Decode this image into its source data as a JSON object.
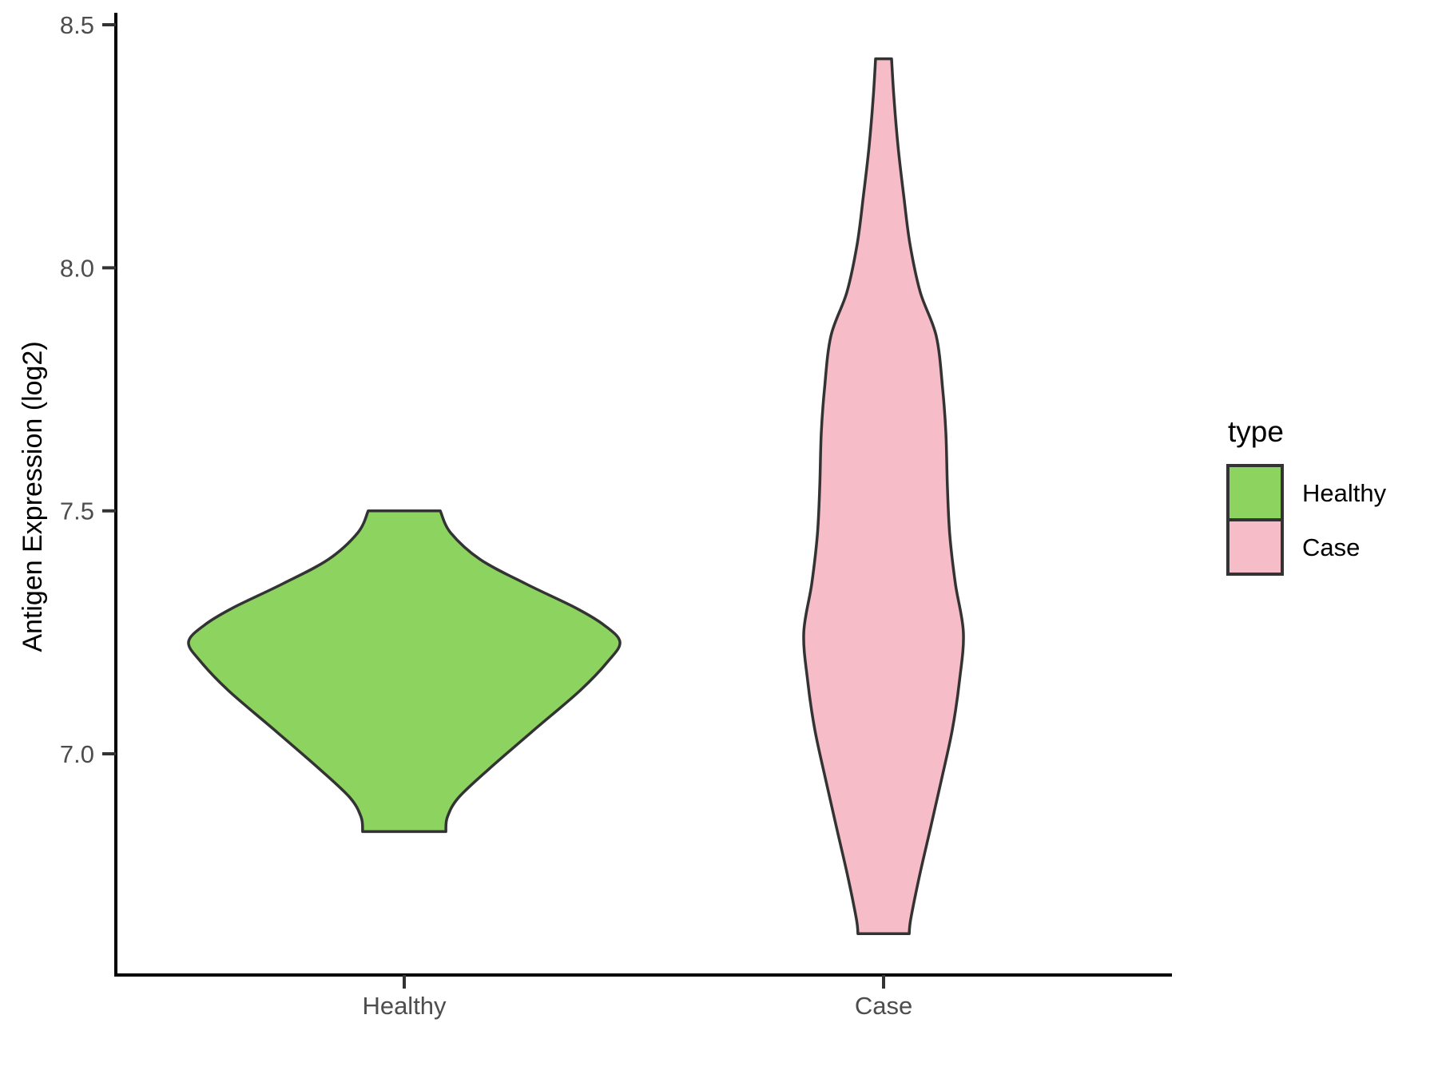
{
  "chart_data": {
    "type": "violin",
    "title": "",
    "xlabel": "",
    "ylabel": "Antigen Expression (log2)",
    "categories": [
      "Healthy",
      "Case"
    ],
    "ylim": [
      6.55,
      8.5
    ],
    "yticks": [
      8.5,
      8.0,
      7.5,
      7.0
    ],
    "ytick_labels": [
      "8.5",
      "8.0",
      "7.5",
      "7.0"
    ],
    "grid": "off",
    "legend": {
      "title": "type",
      "position": "right",
      "entries": [
        {
          "label": "Healthy",
          "color": "#8CD35F"
        },
        {
          "label": "Case",
          "color": "#F6BDC9"
        }
      ]
    },
    "colors": {
      "outline": "#333333",
      "axis_line": "#000000",
      "tick_label": "#4D4D4D",
      "axis_title": "#000000",
      "legend_text": "#000000"
    },
    "series": [
      {
        "name": "Healthy",
        "fill": "#8CD35F",
        "value_range": [
          6.84,
          7.5
        ],
        "peak_value": 7.23,
        "profile": [
          [
            7.5,
            0.167
          ],
          [
            7.455,
            0.215
          ],
          [
            7.4,
            0.352
          ],
          [
            7.35,
            0.563
          ],
          [
            7.3,
            0.796
          ],
          [
            7.265,
            0.926
          ],
          [
            7.23,
            1.0
          ],
          [
            7.19,
            0.944
          ],
          [
            7.13,
            0.815
          ],
          [
            7.05,
            0.604
          ],
          [
            6.97,
            0.396
          ],
          [
            6.91,
            0.252
          ],
          [
            6.87,
            0.2
          ],
          [
            6.84,
            0.193
          ]
        ]
      },
      {
        "name": "Case",
        "fill": "#F6BDC9",
        "value_range": [
          6.63,
          8.43
        ],
        "peak_value": 7.25,
        "profile": [
          [
            8.43,
            0.037
          ],
          [
            8.35,
            0.048
          ],
          [
            8.25,
            0.067
          ],
          [
            8.15,
            0.093
          ],
          [
            8.05,
            0.122
          ],
          [
            7.95,
            0.17
          ],
          [
            7.86,
            0.244
          ],
          [
            7.75,
            0.274
          ],
          [
            7.66,
            0.289
          ],
          [
            7.55,
            0.296
          ],
          [
            7.45,
            0.307
          ],
          [
            7.35,
            0.333
          ],
          [
            7.25,
            0.37
          ],
          [
            7.15,
            0.352
          ],
          [
            7.05,
            0.319
          ],
          [
            6.95,
            0.27
          ],
          [
            6.85,
            0.219
          ],
          [
            6.75,
            0.167
          ],
          [
            6.66,
            0.126
          ],
          [
            6.63,
            0.119
          ]
        ]
      }
    ]
  }
}
